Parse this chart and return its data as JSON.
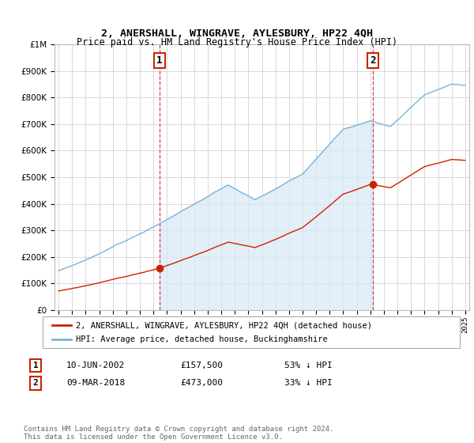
{
  "title": "2, ANERSHALL, WINGRAVE, AYLESBURY, HP22 4QH",
  "subtitle": "Price paid vs. HM Land Registry's House Price Index (HPI)",
  "ylim": [
    0,
    1000000
  ],
  "yticks": [
    0,
    100000,
    200000,
    300000,
    400000,
    500000,
    600000,
    700000,
    800000,
    900000,
    1000000
  ],
  "background_color": "#ffffff",
  "plot_bg_color": "#ffffff",
  "grid_color": "#d8d8d8",
  "hpi_color": "#7ab4d8",
  "hpi_fill_color": "#d6e9f7",
  "price_color": "#cc2200",
  "sale1_year": 2002.44,
  "sale1_price": 157500,
  "sale2_year": 2018.19,
  "sale2_price": 473000,
  "legend_house_label": "2, ANERSHALL, WINGRAVE, AYLESBURY, HP22 4QH (detached house)",
  "legend_hpi_label": "HPI: Average price, detached house, Buckinghamshire",
  "footnote": "Contains HM Land Registry data © Crown copyright and database right 2024.\nThis data is licensed under the Open Government Licence v3.0.",
  "xmin": 1995,
  "xmax": 2025,
  "figwidth": 6.0,
  "figheight": 5.6,
  "dpi": 100
}
